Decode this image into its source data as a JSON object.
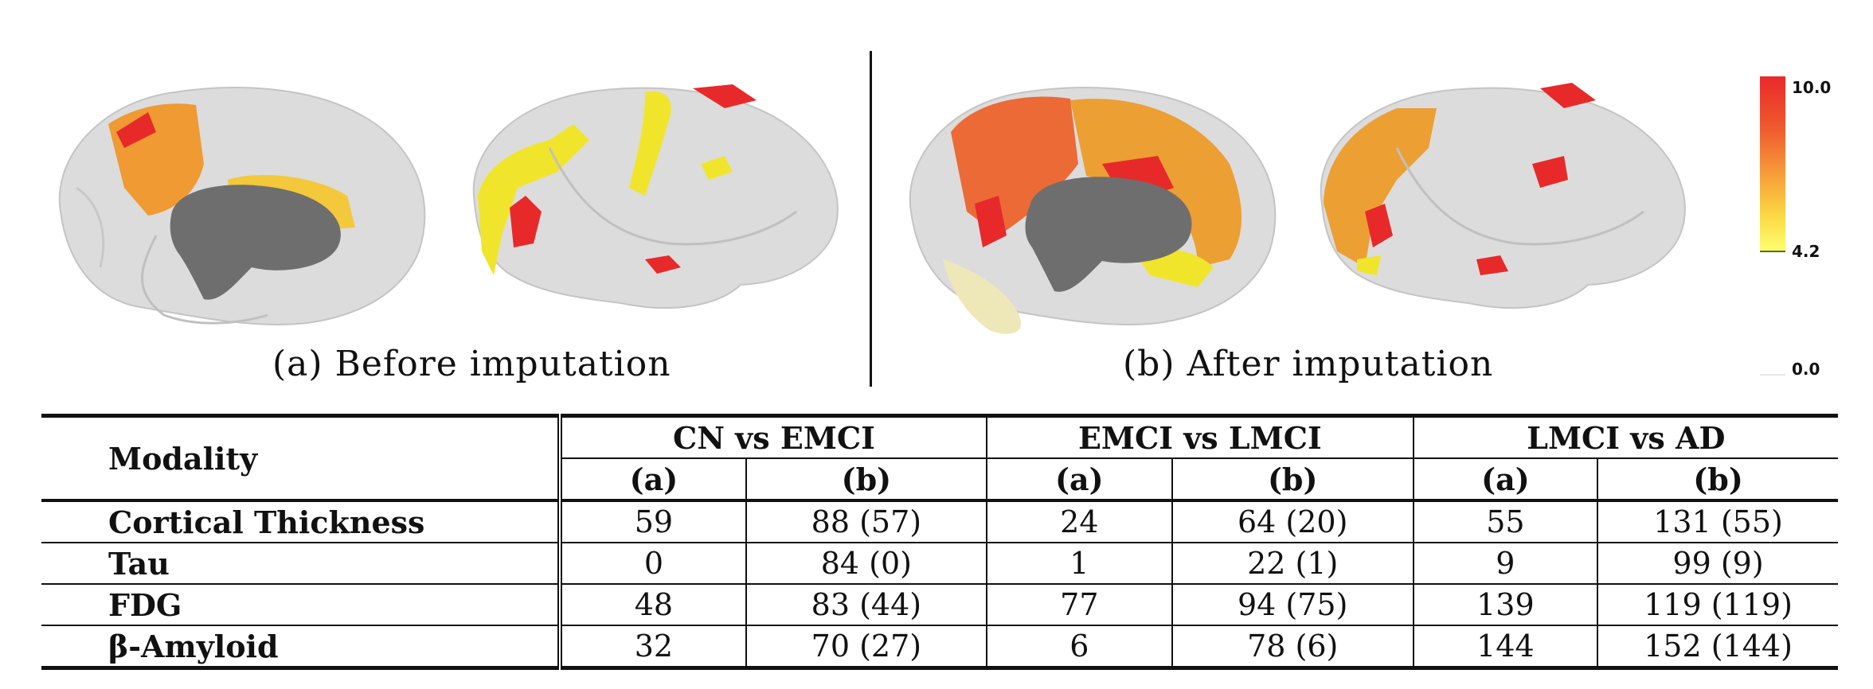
{
  "figure": {
    "caption_a": "(a) Before imputation",
    "caption_b": "(b) After imputation",
    "colorbar": {
      "max_label": "10.0",
      "mid_label": "4.2",
      "min_label": "0.0",
      "colors": [
        "#e8292a",
        "#ef5b2e",
        "#f79b3a",
        "#fbd944",
        "#ffff70"
      ]
    }
  },
  "table": {
    "modality_header": "Modality",
    "groups": [
      "CN vs EMCI",
      "EMCI vs LMCI",
      "LMCI vs AD"
    ],
    "subheaders": [
      "(a)",
      "(b)",
      "(a)",
      "(b)",
      "(a)",
      "(b)"
    ],
    "rows": [
      {
        "modality": "Cortical Thickness",
        "cells": [
          "59",
          "88 (57)",
          "24",
          "64 (20)",
          "55",
          "131 (55)"
        ]
      },
      {
        "modality": "Tau",
        "cells": [
          "0",
          "84 (0)",
          "1",
          "22 (1)",
          "9",
          "99 (9)"
        ]
      },
      {
        "modality": "FDG",
        "cells": [
          "48",
          "83 (44)",
          "77",
          "94 (75)",
          "139",
          "119 (119)"
        ]
      },
      {
        "modality": "β-Amyloid",
        "cells": [
          "32",
          "70 (27)",
          "6",
          "78 (6)",
          "144",
          "152 (144)"
        ]
      }
    ]
  }
}
